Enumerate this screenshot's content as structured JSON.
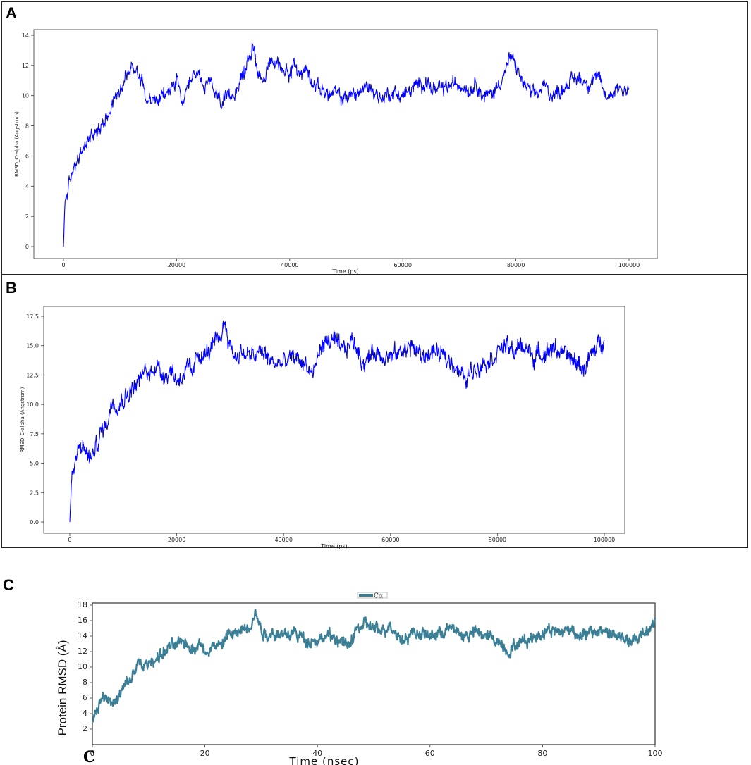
{
  "panels": {
    "a_label": "A",
    "b_label": "B",
    "c_label": "C",
    "c_bottom_label": "C"
  },
  "colors": {
    "a": "#0000ff",
    "b": "#0000ff",
    "c": "#3a7f96"
  },
  "chart_data": [
    {
      "type": "line",
      "panel": "A",
      "xlabel": "Time (ps)",
      "ylabel": "RMSD_C-alpha (Angstrom)",
      "xlim": [
        0,
        100000
      ],
      "ylim": [
        0,
        14
      ],
      "xticks": [
        0,
        20000,
        40000,
        60000,
        80000,
        100000
      ],
      "yticks": [
        0,
        2,
        4,
        6,
        8,
        10,
        12,
        14
      ],
      "xtick_labels": [
        "0",
        "20000",
        "40000",
        "60000",
        "80000",
        "100000"
      ],
      "ytick_labels": [
        "0",
        "2",
        "4",
        "6",
        "8",
        "10",
        "12",
        "14"
      ],
      "series": [
        {
          "x": [
            0,
            300,
            1000,
            2000,
            3000,
            4000,
            5000,
            6000,
            7000,
            8000,
            9000,
            10000,
            11000,
            12000,
            13000,
            14000,
            15000,
            16000,
            17000,
            18000,
            19000,
            20000,
            21000,
            22000,
            23000,
            24000,
            25000,
            26000,
            27000,
            28000,
            29000,
            30000,
            31000,
            32000,
            33000,
            33600,
            34500,
            35000,
            36000,
            37000,
            38000,
            39000,
            40000,
            41000,
            42000,
            43000,
            44000,
            45000,
            46000,
            47000,
            48000,
            49000,
            50000,
            52000,
            54000,
            55000,
            56000,
            58000,
            60000,
            62000,
            64000,
            65000,
            66000,
            68000,
            70000,
            72000,
            73000,
            74000,
            75000,
            76000,
            78000,
            79000,
            80000,
            81000,
            82000,
            83000,
            84000,
            85000,
            86000,
            87000,
            88000,
            89000,
            90000,
            91000,
            92000,
            93000,
            94000,
            95000,
            96000,
            97000,
            98000,
            99000,
            100000
          ],
          "y": [
            0,
            3.2,
            4.0,
            5.5,
            6.0,
            6.8,
            7.5,
            7.5,
            8.3,
            9.0,
            9.8,
            10.5,
            11.3,
            11.8,
            11.8,
            10.8,
            9.8,
            9.6,
            9.8,
            10.0,
            10.5,
            11.0,
            9.5,
            10.2,
            11.2,
            11.5,
            10.5,
            10.8,
            10.0,
            9.6,
            9.6,
            10.2,
            10.8,
            11.5,
            12.8,
            13.2,
            11.5,
            11.2,
            11.5,
            12.3,
            12.0,
            11.8,
            11.6,
            11.9,
            11.4,
            11.8,
            11.0,
            10.5,
            10.4,
            10.0,
            10.2,
            9.8,
            9.9,
            10.2,
            10.6,
            10.3,
            9.8,
            10.2,
            10.0,
            10.5,
            11.0,
            10.5,
            10.3,
            10.6,
            10.8,
            10.4,
            11.0,
            10.0,
            10.0,
            10.2,
            11.5,
            12.5,
            12.0,
            11.0,
            10.5,
            10.0,
            10.2,
            10.7,
            10.2,
            10.1,
            10.4,
            10.8,
            11.0,
            11.2,
            11.0,
            10.8,
            11.3,
            10.8,
            9.8,
            10.2,
            10.6,
            10.4,
            10.5
          ]
        }
      ]
    },
    {
      "type": "line",
      "panel": "B",
      "xlabel": "Time (ps)",
      "ylabel": "RMSD_C-alpha (Angstrom)",
      "xlim": [
        0,
        100000
      ],
      "ylim": [
        0,
        17.5
      ],
      "xticks": [
        0,
        20000,
        40000,
        60000,
        80000,
        100000
      ],
      "yticks": [
        0,
        2.5,
        5,
        7.5,
        10,
        12.5,
        15,
        17.5
      ],
      "xtick_labels": [
        "0",
        "20000",
        "40000",
        "60000",
        "80000",
        "100000"
      ],
      "ytick_labels": [
        "0.0",
        "2.5",
        "5.0",
        "7.5",
        "10.0",
        "12.5",
        "15.0",
        "17.5"
      ],
      "series": [
        {
          "x": [
            0,
            300,
            1000,
            2000,
            3000,
            4000,
            5000,
            6000,
            7000,
            8000,
            9000,
            10000,
            11000,
            12000,
            13000,
            14000,
            15000,
            16000,
            17000,
            18000,
            19000,
            20000,
            21000,
            22000,
            23000,
            24000,
            25000,
            26000,
            27000,
            28000,
            29000,
            30000,
            31000,
            32000,
            34000,
            36000,
            38000,
            40000,
            42000,
            44000,
            45500,
            47000,
            49000,
            51000,
            53000,
            55000,
            57000,
            60000,
            62000,
            64000,
            66000,
            68000,
            70000,
            72000,
            74000,
            75000,
            77000,
            79000,
            81000,
            83000,
            85000,
            87000,
            89000,
            91000,
            93000,
            95000,
            96000,
            98000,
            100000
          ],
          "y": [
            0,
            3.3,
            5.0,
            6.5,
            6.0,
            5.3,
            6.5,
            7.8,
            8.5,
            10.5,
            10.0,
            10.5,
            11.0,
            11.5,
            12.0,
            12.8,
            12.5,
            13.5,
            12.8,
            12.5,
            13.0,
            12.0,
            12.5,
            13.0,
            12.5,
            14.5,
            14.0,
            14.5,
            15.0,
            15.5,
            17.0,
            15.0,
            14.0,
            14.5,
            14.0,
            14.5,
            13.5,
            13.5,
            14.0,
            13.5,
            12.5,
            15.0,
            15.5,
            14.5,
            15.5,
            13.5,
            14.5,
            14.0,
            14.5,
            15.0,
            14.0,
            14.5,
            14.0,
            13.5,
            12.0,
            12.8,
            13.5,
            14.0,
            15.0,
            14.5,
            15.0,
            14.0,
            14.5,
            14.8,
            14.0,
            13.5,
            13.0,
            14.5,
            15.8
          ]
        }
      ]
    },
    {
      "type": "line",
      "panel": "C",
      "xlabel": "Time (nsec)",
      "ylabel": "Protein RMSD (Å)",
      "legend": [
        "Cα"
      ],
      "legend_position": "top-center",
      "xlim": [
        0,
        100
      ],
      "ylim": [
        0,
        18
      ],
      "xticks": [
        0,
        20,
        40,
        60,
        80,
        100
      ],
      "yticks": [
        2,
        4,
        6,
        8,
        10,
        12,
        14,
        16,
        18
      ],
      "xtick_labels": [
        "0",
        "20",
        "40",
        "60",
        "80",
        "100"
      ],
      "ytick_labels": [
        "2",
        "4",
        "6",
        "8",
        "10",
        "12",
        "14",
        "16",
        "18"
      ],
      "series": [
        {
          "name": "Cα",
          "x": [
            0,
            0.3,
            1,
            2,
            3,
            4,
            5,
            6,
            7,
            8,
            9,
            10,
            11,
            12,
            13,
            14,
            15,
            16,
            17,
            18,
            19,
            20,
            21,
            22,
            23,
            24,
            25,
            26,
            27,
            28,
            29,
            30,
            31,
            32,
            34,
            36,
            38,
            40,
            42,
            44,
            45.5,
            47,
            49,
            51,
            53,
            55,
            57,
            60,
            62,
            64,
            66,
            68,
            70,
            72,
            74,
            75,
            77,
            79,
            81,
            83,
            85,
            87,
            89,
            91,
            93,
            95,
            96,
            98,
            100
          ],
          "y": [
            3.0,
            3.5,
            5.0,
            6.5,
            6.0,
            5.3,
            6.5,
            7.8,
            8.5,
            10.5,
            10.0,
            10.5,
            11.0,
            11.5,
            12.0,
            12.8,
            12.5,
            13.5,
            12.8,
            12.5,
            13.0,
            12.0,
            12.5,
            13.0,
            12.5,
            14.5,
            14.0,
            14.5,
            15.0,
            15.5,
            17.0,
            15.0,
            14.0,
            14.5,
            14.0,
            14.5,
            13.5,
            13.5,
            14.0,
            13.5,
            12.5,
            15.0,
            15.5,
            14.5,
            15.5,
            13.5,
            14.5,
            14.0,
            14.5,
            15.0,
            14.0,
            14.5,
            14.0,
            13.5,
            12.0,
            12.8,
            13.5,
            14.0,
            15.0,
            14.5,
            15.0,
            14.0,
            14.5,
            14.8,
            14.0,
            13.5,
            13.0,
            14.5,
            15.8
          ]
        }
      ]
    }
  ]
}
